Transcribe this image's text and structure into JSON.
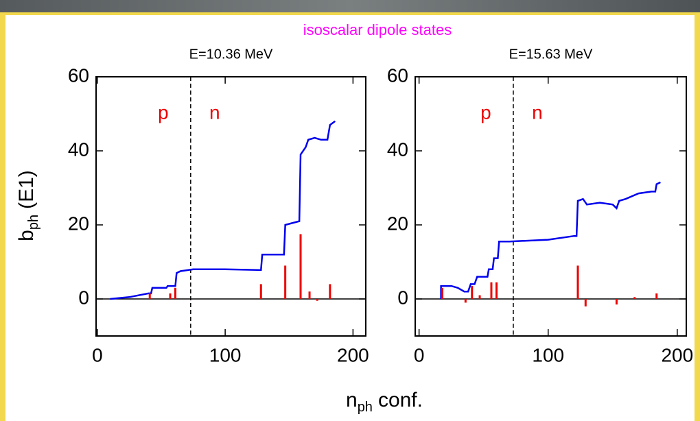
{
  "title": "isoscalar dipole states",
  "title_color": "#ff00ff",
  "xlabel": {
    "main": "n",
    "sub": "ph",
    "rest": "conf."
  },
  "ylabel": {
    "main": "b",
    "sub": "ph",
    "rest": "(E1)"
  },
  "chart_data": [
    {
      "type": "line",
      "title": "E=10.36 MeV",
      "xlim": [
        -1,
        210
      ],
      "ylim": [
        -10,
        60
      ],
      "xticks": [
        0,
        100,
        200
      ],
      "yticks": [
        0,
        20,
        40,
        60
      ],
      "divider_x": 73,
      "annotations": [
        "p",
        "n"
      ],
      "annotation_color": "#ee0000",
      "series": [
        {
          "color": "#0000ee",
          "kind": "line",
          "x": [
            10,
            25,
            40,
            42,
            43,
            54,
            55,
            61,
            62,
            65,
            75,
            100,
            128,
            129,
            146,
            147,
            158,
            159,
            163,
            165,
            170,
            175,
            180,
            182,
            186
          ],
          "values": [
            0,
            0.5,
            1.5,
            1.5,
            3,
            3,
            3.5,
            3.5,
            7,
            7.5,
            8,
            8,
            7.8,
            12,
            12,
            20,
            21,
            39,
            41,
            43,
            43.5,
            43,
            43,
            47,
            48
          ]
        },
        {
          "color": "#ee0000",
          "kind": "stem",
          "x": [
            41,
            57,
            61,
            128,
            147,
            159,
            166,
            172,
            182
          ],
          "values": [
            1.5,
            1.5,
            3,
            4,
            9,
            17.5,
            2,
            -0.5,
            4
          ]
        }
      ]
    },
    {
      "type": "line",
      "title": "E=15.63 MeV",
      "xlim": [
        -3,
        207
      ],
      "ylim": [
        -10,
        60
      ],
      "xticks": [
        0,
        100,
        200
      ],
      "yticks": [
        0,
        20,
        40,
        60
      ],
      "divider_x": 73,
      "annotations": [
        "p",
        "n"
      ],
      "annotation_color": "#ee0000",
      "series": [
        {
          "color": "#0000ee",
          "kind": "line",
          "x": [
            17,
            17,
            25,
            30,
            35,
            38,
            40,
            43,
            45,
            53,
            54,
            57,
            58,
            61,
            62,
            70,
            100,
            120,
            122,
            123,
            127,
            130,
            140,
            150,
            153,
            155,
            160,
            170,
            180,
            183,
            184,
            187
          ],
          "values": [
            0,
            3.5,
            3.5,
            3,
            2,
            2,
            4,
            4,
            6,
            6,
            8,
            8,
            11,
            11,
            15.5,
            15.5,
            16,
            17,
            17,
            26.5,
            27,
            25.5,
            26,
            25.5,
            24.5,
            26.5,
            27,
            28.5,
            29,
            29,
            31,
            31.5
          ]
        },
        {
          "color": "#ee0000",
          "kind": "stem",
          "x": [
            18,
            36,
            41,
            47,
            56,
            60,
            123,
            129,
            153,
            167,
            184
          ],
          "values": [
            3,
            -1,
            3.5,
            1,
            4.5,
            4.5,
            9,
            -2,
            -1.5,
            0.5,
            1.5
          ]
        }
      ]
    }
  ]
}
